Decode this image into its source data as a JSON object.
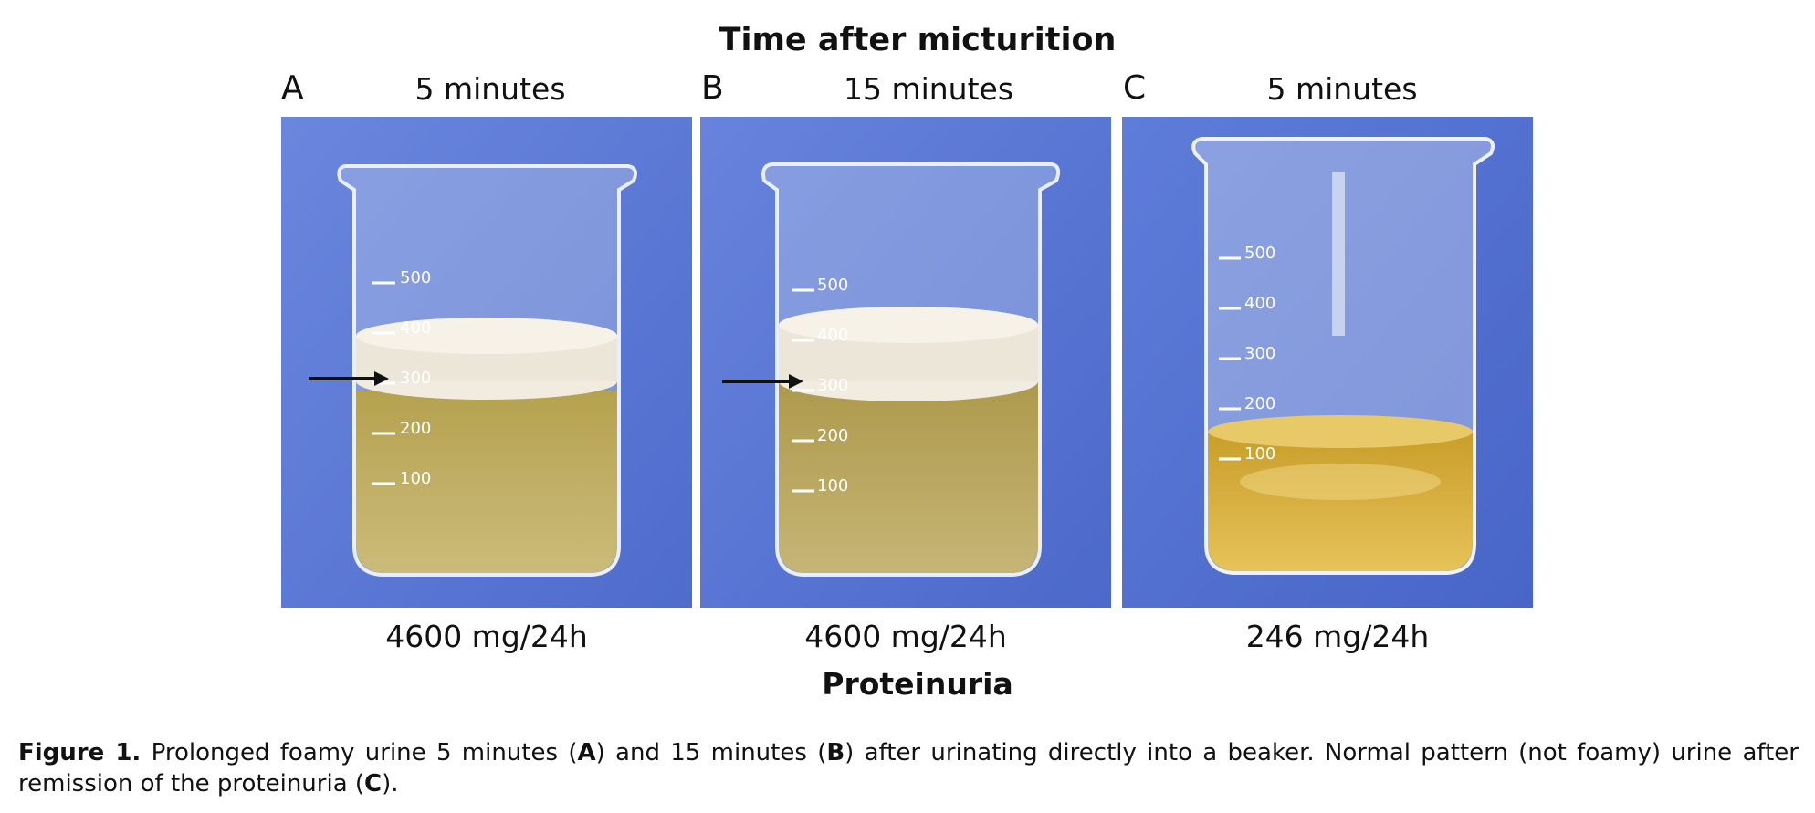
{
  "header": {
    "title": "Time after micturition"
  },
  "panels": [
    {
      "letter": "A",
      "time": "5 minutes",
      "proteinuria": "4600 mg/24h",
      "scale": [
        "500",
        "400",
        "300",
        "200",
        "100"
      ],
      "foamy": true
    },
    {
      "letter": "B",
      "time": "15 minutes",
      "proteinuria": "4600 mg/24h",
      "scale": [
        "500",
        "400",
        "300",
        "200",
        "100"
      ],
      "foamy": true
    },
    {
      "letter": "C",
      "time": "5 minutes",
      "proteinuria": "246 mg/24h",
      "scale": [
        "500",
        "400",
        "300",
        "200",
        "100"
      ],
      "foamy": false
    }
  ],
  "footer": {
    "label": "Proteinuria"
  },
  "caption": {
    "label": "Figure 1.",
    "t1": " Prolonged foamy urine 5 minutes (",
    "a": "A",
    "t2": ") and 15 minutes (",
    "b": "B",
    "t3": ") after urinating directly into a beaker. Normal pattern (not foamy) urine after remission of the proteinuria (",
    "c": "C",
    "t4": ")."
  },
  "colors": {
    "background_blue": "#5e79d6",
    "urine_foamy": "#b9a552",
    "urine_clear": "#dcb43a",
    "foam": "#ece6d8",
    "arrow": "#111111"
  }
}
